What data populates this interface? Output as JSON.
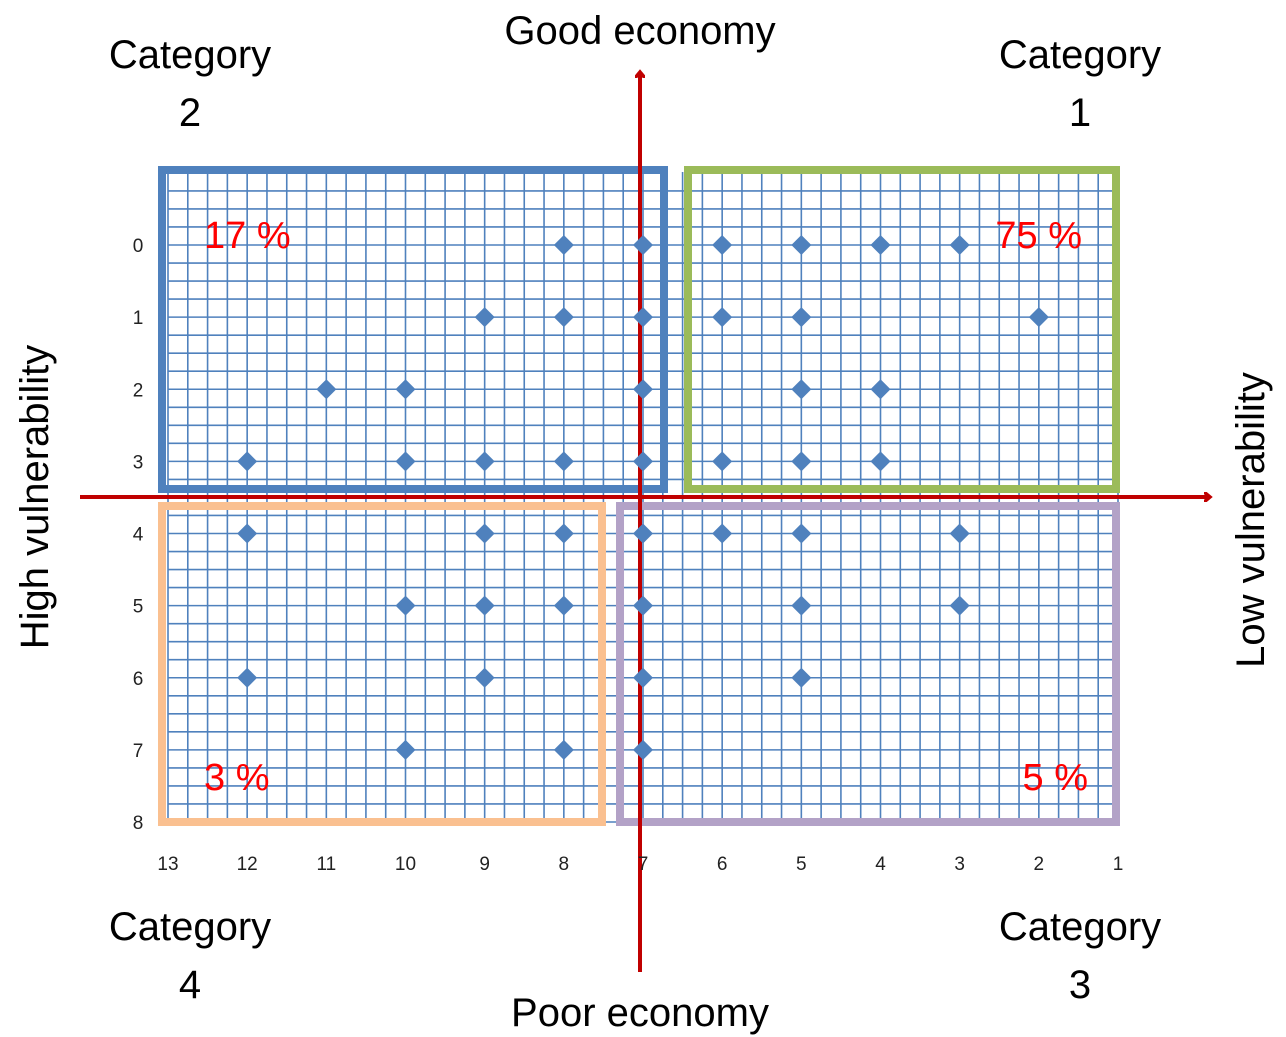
{
  "chart_data": {
    "type": "scatter",
    "title": "",
    "top_label": "Good economy",
    "bottom_label": "Poor economy",
    "left_label": "High vulnerability",
    "right_label": "Low vulnerability",
    "x_axis": {
      "min": 1,
      "max": 13,
      "reversed": true,
      "ticks": [
        "13",
        "12",
        "11",
        "10",
        "9",
        "8",
        "7",
        "6",
        "5",
        "4",
        "3",
        "2",
        "1"
      ]
    },
    "y_axis": {
      "min": 0,
      "max": 8,
      "reversed": true,
      "ticks": [
        "0",
        "1",
        "2",
        "3",
        "4",
        "5",
        "6",
        "7",
        "8"
      ]
    },
    "grid": true,
    "marker": {
      "shape": "diamond",
      "color": "#4f81bd"
    },
    "points": [
      {
        "x": 8,
        "y": 0
      },
      {
        "x": 7,
        "y": 0
      },
      {
        "x": 6,
        "y": 0
      },
      {
        "x": 5,
        "y": 0
      },
      {
        "x": 4,
        "y": 0
      },
      {
        "x": 3,
        "y": 0
      },
      {
        "x": 9,
        "y": 1
      },
      {
        "x": 8,
        "y": 1
      },
      {
        "x": 7,
        "y": 1
      },
      {
        "x": 6,
        "y": 1
      },
      {
        "x": 5,
        "y": 1
      },
      {
        "x": 2,
        "y": 1
      },
      {
        "x": 11,
        "y": 2
      },
      {
        "x": 10,
        "y": 2
      },
      {
        "x": 7,
        "y": 2
      },
      {
        "x": 5,
        "y": 2
      },
      {
        "x": 4,
        "y": 2
      },
      {
        "x": 12,
        "y": 3
      },
      {
        "x": 10,
        "y": 3
      },
      {
        "x": 9,
        "y": 3
      },
      {
        "x": 8,
        "y": 3
      },
      {
        "x": 7,
        "y": 3
      },
      {
        "x": 6,
        "y": 3
      },
      {
        "x": 5,
        "y": 3
      },
      {
        "x": 4,
        "y": 3
      },
      {
        "x": 12,
        "y": 4
      },
      {
        "x": 9,
        "y": 4
      },
      {
        "x": 8,
        "y": 4
      },
      {
        "x": 7,
        "y": 4
      },
      {
        "x": 6,
        "y": 4
      },
      {
        "x": 5,
        "y": 4
      },
      {
        "x": 3,
        "y": 4
      },
      {
        "x": 10,
        "y": 5
      },
      {
        "x": 9,
        "y": 5
      },
      {
        "x": 8,
        "y": 5
      },
      {
        "x": 7,
        "y": 5
      },
      {
        "x": 5,
        "y": 5
      },
      {
        "x": 3,
        "y": 5
      },
      {
        "x": 12,
        "y": 6
      },
      {
        "x": 9,
        "y": 6
      },
      {
        "x": 7,
        "y": 6
      },
      {
        "x": 5,
        "y": 6
      },
      {
        "x": 10,
        "y": 7
      },
      {
        "x": 8,
        "y": 7
      },
      {
        "x": 7,
        "y": 7
      }
    ],
    "categories": [
      {
        "id": "category-1",
        "line1": "Category",
        "line2": "1",
        "percent": "75 %",
        "box_color": "#9bbb59"
      },
      {
        "id": "category-2",
        "line1": "Category",
        "line2": "2",
        "percent": "17 %",
        "box_color": "#4f81bd"
      },
      {
        "id": "category-3",
        "line1": "Category",
        "line2": "3",
        "percent": "5 %",
        "box_color": "#b3a2c7"
      },
      {
        "id": "category-4",
        "line1": "Category",
        "line2": "4",
        "percent": "3 %",
        "box_color": "#fac090"
      }
    ],
    "colors": {
      "arrow": "#c00000",
      "grid": "#4f81bd",
      "percent_text": "#ff0000"
    }
  }
}
